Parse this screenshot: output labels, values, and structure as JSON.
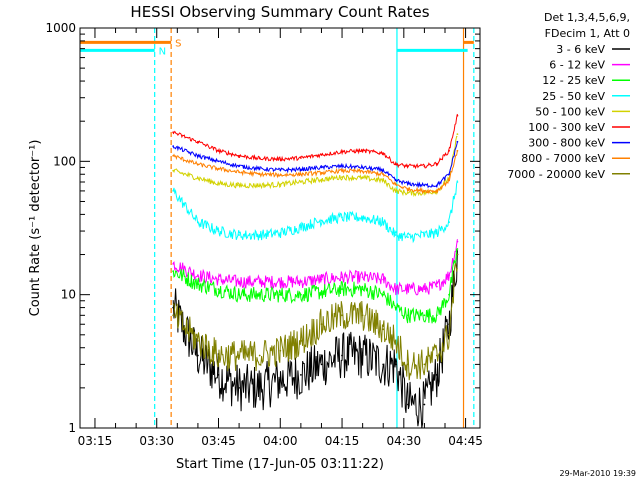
{
  "colors": {
    "background": "#ffffff",
    "axis": "#000000",
    "cyan": "#00ffff",
    "orange": "#ff8000",
    "series": [
      "#000000",
      "#ff00ff",
      "#00ff00",
      "#00ffff",
      "#d2d200",
      "#ff0000",
      "#0000ff",
      "#ff8000",
      "#808000"
    ]
  },
  "chart_data": {
    "type": "line",
    "title": "HESSI Observing Summary Count Rates",
    "xlabel": "Start Time (17-Jun-05 03:11:22)",
    "ylabel": "Count Rate (s⁻¹ detector⁻¹)",
    "yscale": "log",
    "ylim": [
      1,
      1000
    ],
    "xlim_minutes": [
      "03:11:22",
      "04:48:30"
    ],
    "x_ticks": [
      "03:15",
      "03:30",
      "03:45",
      "04:00",
      "04:15",
      "04:30",
      "04:45"
    ],
    "y_ticks": [
      "1",
      "10",
      "100",
      "1000"
    ],
    "legend_header": [
      "Det 1,3,4,5,6,9,",
      "FDecim 1, Att 0"
    ],
    "legend_position": "right",
    "timestamp": "29-Mar-2010 19:39",
    "flags": [
      {
        "label": "S",
        "color": "orange",
        "intervals": [
          [
            "03:11:22",
            "03:33:30"
          ],
          [
            "04:44:30",
            "04:47:00"
          ]
        ],
        "level": 780
      },
      {
        "label": "N",
        "color": "cyan",
        "intervals": [
          [
            "03:11:22",
            "03:29:30"
          ],
          [
            "04:28:20",
            "04:45:30"
          ]
        ],
        "level": 680
      }
    ],
    "vlines": [
      {
        "time": "03:29:30",
        "color": "cyan",
        "style": "dashed"
      },
      {
        "time": "03:33:30",
        "color": "orange",
        "style": "dashed"
      },
      {
        "time": "04:28:20",
        "color": "cyan",
        "style": "solid"
      },
      {
        "time": "04:44:30",
        "color": "orange",
        "style": "solid"
      },
      {
        "time": "04:47:00",
        "color": "cyan",
        "style": "dashed"
      }
    ],
    "x": [
      "03:34",
      "03:40",
      "03:45",
      "03:50",
      "03:55",
      "04:00",
      "04:05",
      "04:10",
      "04:15",
      "04:20",
      "04:25",
      "04:28",
      "04:31",
      "04:35",
      "04:38",
      "04:41",
      "04:43"
    ],
    "series": [
      {
        "name": "3 - 6 keV",
        "color_index": 0,
        "values": [
          8,
          3.5,
          2.5,
          2.0,
          2.0,
          2.3,
          2.5,
          3.0,
          3.5,
          3.5,
          3.0,
          3.0,
          1.5,
          1.5,
          2.5,
          6,
          20
        ]
      },
      {
        "name": "6 - 12 keV",
        "color_index": 1,
        "values": [
          17,
          14,
          13,
          12.5,
          12.5,
          12.5,
          12.5,
          13,
          13.5,
          13.5,
          13,
          11,
          11,
          11,
          11.5,
          14,
          25
        ]
      },
      {
        "name": "12 - 25 keV",
        "color_index": 2,
        "values": [
          15,
          12,
          11,
          10,
          10,
          10,
          10,
          10.5,
          11,
          11,
          10,
          8,
          7,
          7,
          7,
          10,
          22
        ]
      },
      {
        "name": "25 - 50 keV",
        "color_index": 3,
        "values": [
          60,
          35,
          30,
          28,
          28,
          29,
          32,
          36,
          38,
          38,
          35,
          28,
          27,
          28,
          29,
          35,
          70
        ]
      },
      {
        "name": "50 - 100 keV",
        "color_index": 4,
        "values": [
          85,
          75,
          68,
          66,
          66,
          67,
          70,
          73,
          76,
          75,
          72,
          60,
          58,
          58,
          60,
          75,
          160
        ]
      },
      {
        "name": "100 - 300 keV",
        "color_index": 5,
        "values": [
          165,
          140,
          120,
          110,
          105,
          104,
          106,
          112,
          118,
          120,
          115,
          95,
          92,
          92,
          96,
          120,
          220
        ]
      },
      {
        "name": "300 - 800 keV",
        "color_index": 6,
        "values": [
          130,
          110,
          100,
          92,
          88,
          86,
          87,
          90,
          92,
          90,
          86,
          72,
          68,
          66,
          66,
          80,
          140
        ]
      },
      {
        "name": "800 - 7000 keV",
        "color_index": 7,
        "values": [
          110,
          95,
          88,
          83,
          80,
          79,
          80,
          82,
          85,
          84,
          80,
          67,
          62,
          60,
          60,
          72,
          120
        ]
      },
      {
        "name": "7000 - 20000 keV",
        "color_index": 8,
        "values": [
          7,
          4.5,
          3.5,
          3.5,
          3.5,
          3.8,
          4.5,
          6,
          7,
          7,
          5.5,
          4.5,
          3,
          3,
          3.5,
          5,
          20
        ]
      }
    ]
  }
}
